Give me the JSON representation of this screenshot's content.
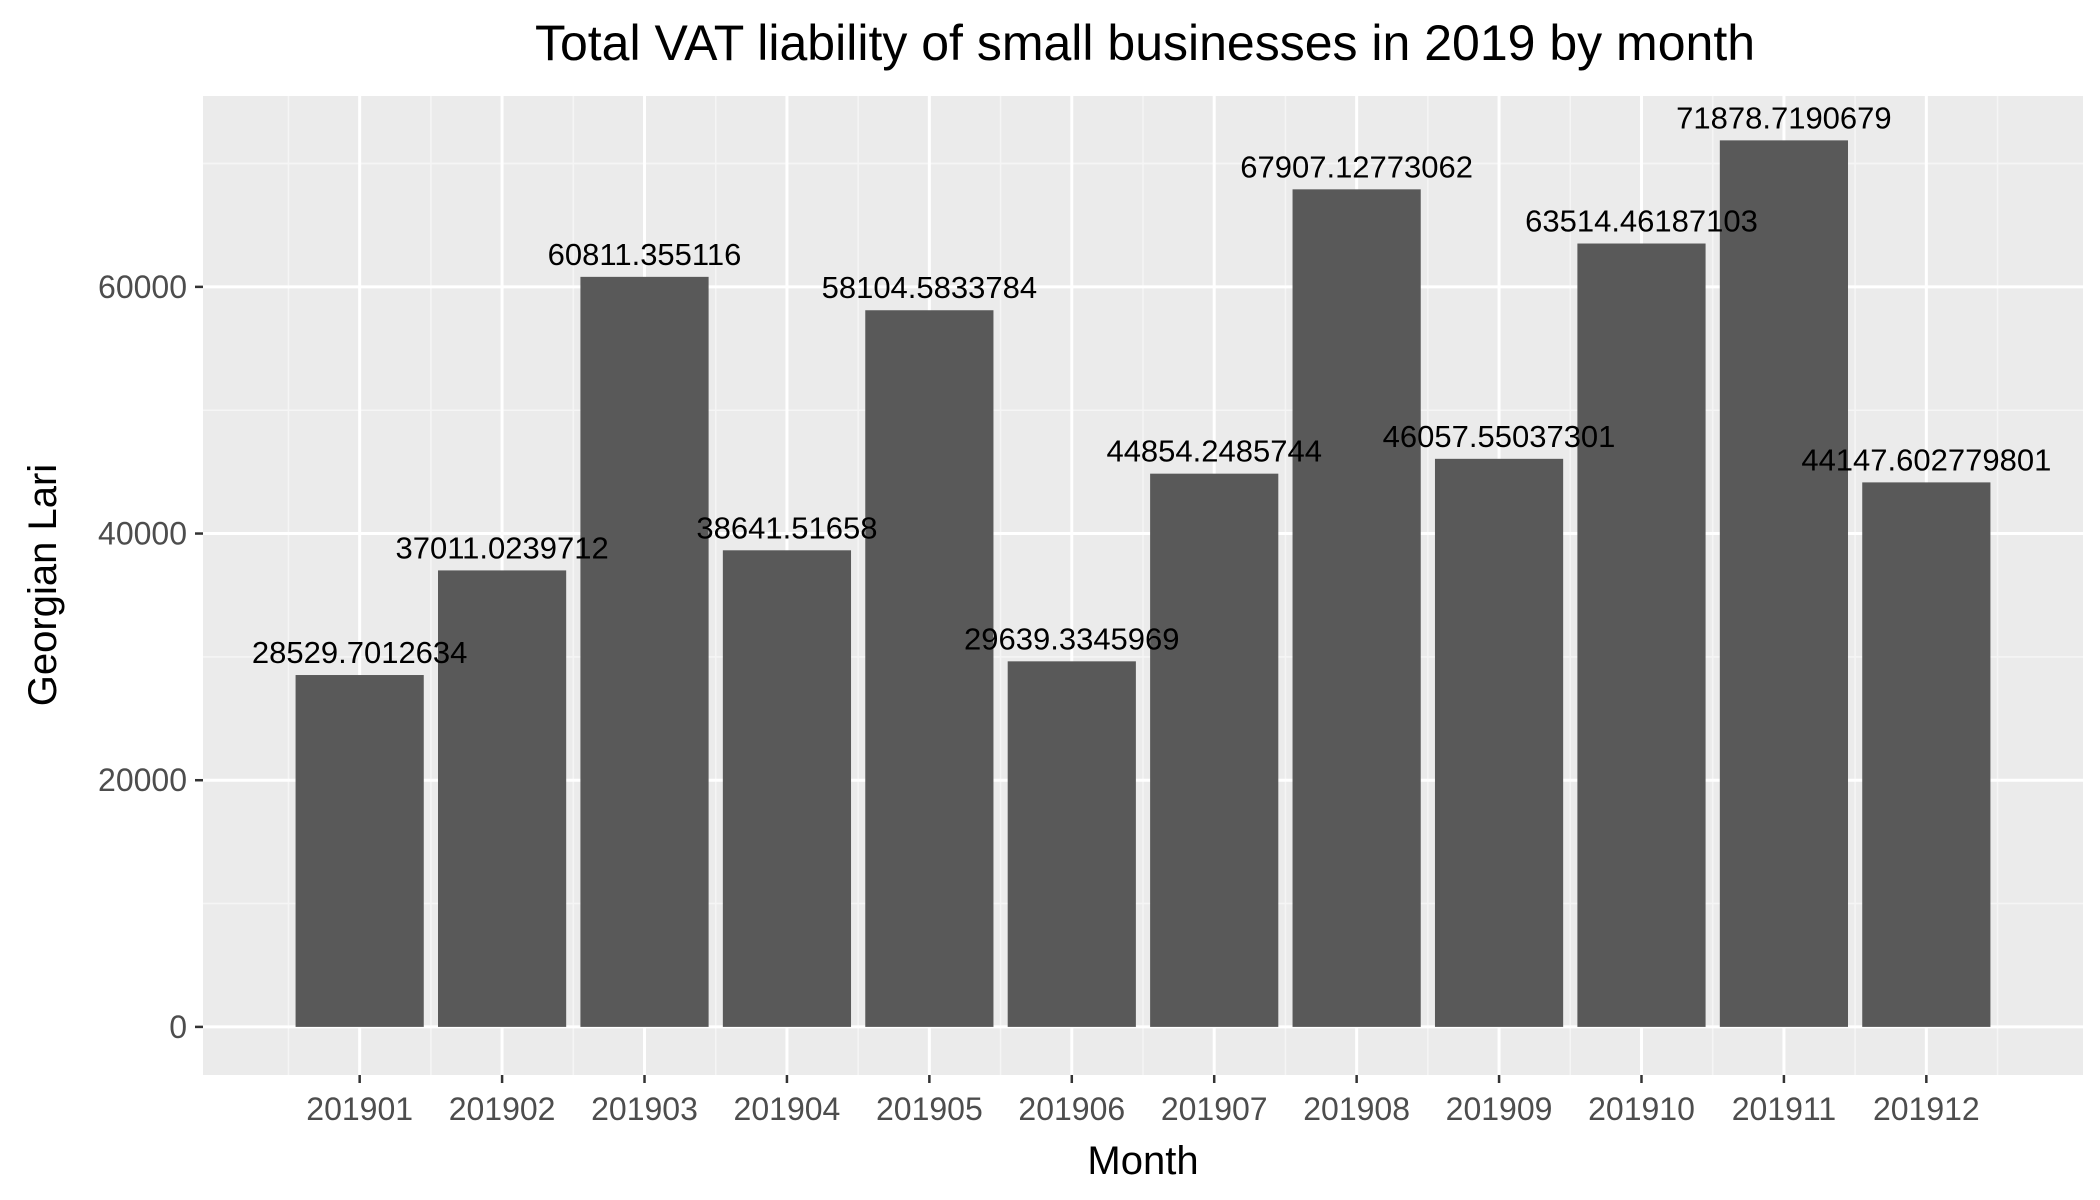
{
  "chart_data": {
    "type": "bar",
    "title": "Total VAT liability of small businesses in 2019 by month",
    "xlabel": "Month",
    "ylabel": "Georgian Lari",
    "categories": [
      "201901",
      "201902",
      "201903",
      "201904",
      "201905",
      "201906",
      "201907",
      "201908",
      "201909",
      "201910",
      "201911",
      "201912"
    ],
    "values": [
      28529.7012634,
      37011.0239712,
      60811.355116,
      38641.51658,
      58104.5833784,
      29639.3345969,
      44854.2485744,
      67907.12773062,
      46057.55037301,
      63514.46187103,
      71878.7190679,
      44147.602779801
    ],
    "value_labels": [
      "28529.7012634",
      "37011.0239712",
      "60811.355116",
      "38641.51658",
      "58104.5833784",
      "29639.3345969",
      "44854.2485744",
      "67907.12773062",
      "46057.55037301",
      "63514.46187103",
      "71878.7190679",
      "44147.602779801"
    ],
    "ylim": [
      -3900,
      75475
    ],
    "yticks": [
      0,
      20000,
      40000,
      60000
    ],
    "ytick_labels": [
      "0",
      "20000",
      "40000",
      "60000"
    ],
    "grid": true,
    "legend": "none",
    "colors": {
      "bar": "#595959",
      "panel_background": "#ebebeb",
      "grid_major": "#ffffff",
      "grid_minor": "#f5f5f5",
      "tick_mark": "#333333"
    }
  }
}
